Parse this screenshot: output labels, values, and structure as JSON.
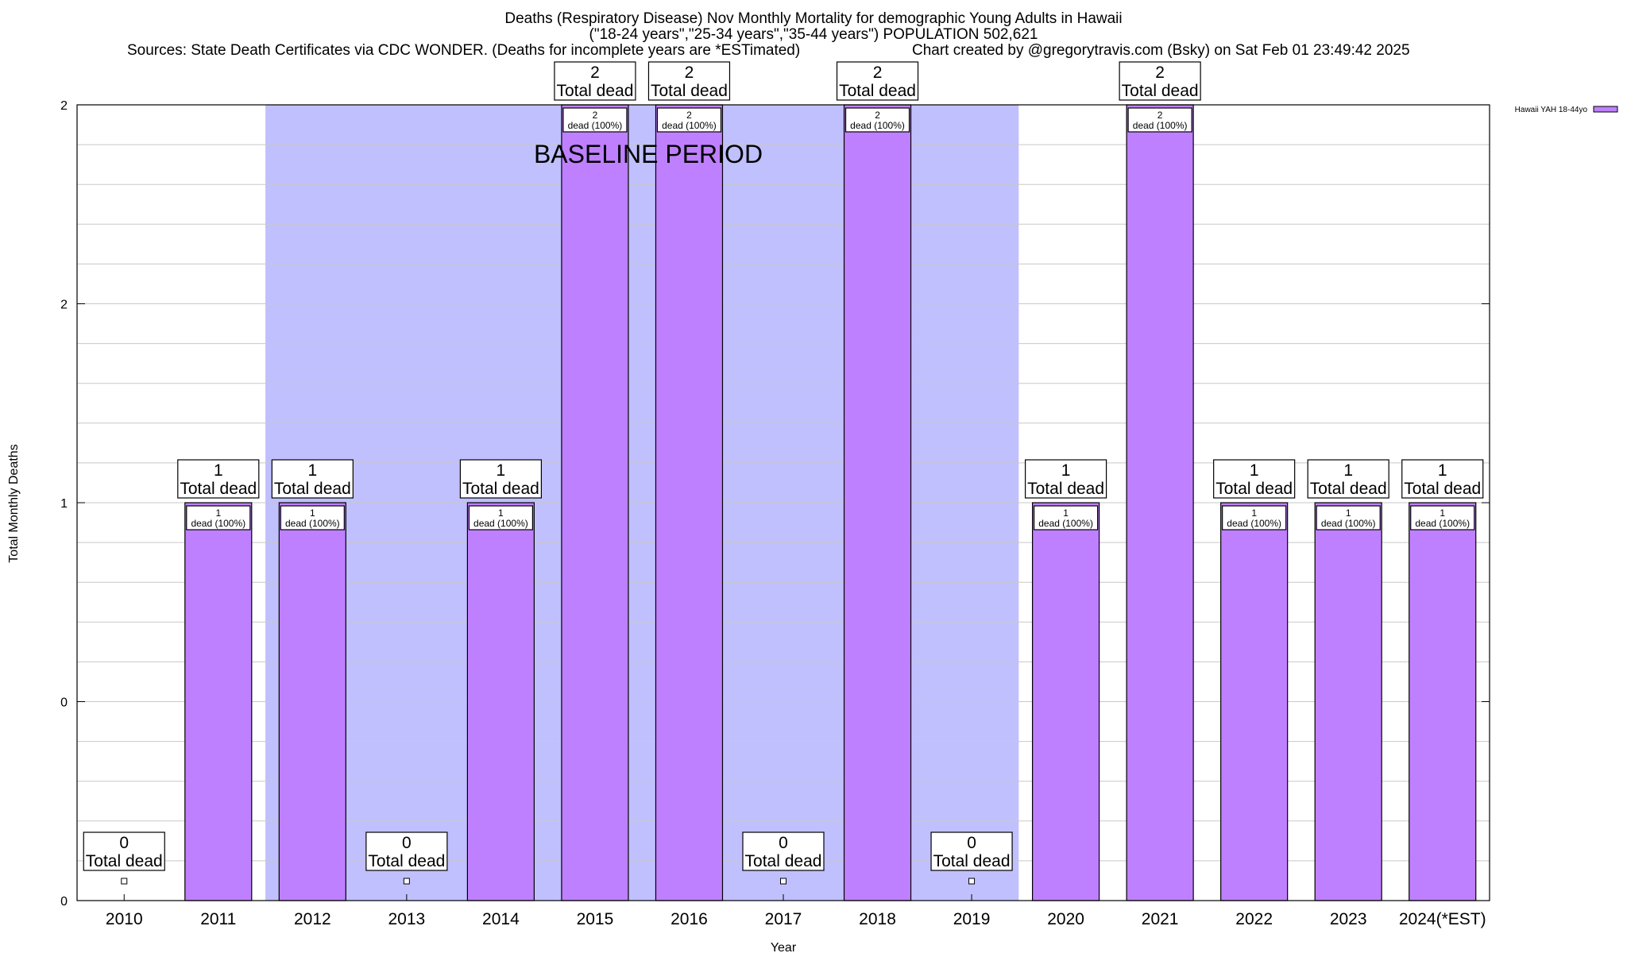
{
  "chart_data": {
    "type": "bar",
    "title": "Deaths (Respiratory Disease) Nov Monthly Mortality for demographic Young Adults in Hawaii",
    "subtitle": "(\"18-24 years\",\"25-34 years\",\"35-44 years\") POPULATION 502,621",
    "sources": "Sources: State Death Certificates via CDC WONDER. (Deaths for incomplete years are *ESTimated)",
    "credit": "Chart created by @gregorytravis.com (Bsky) on Sat Feb 01 23:49:42 2025",
    "xlabel": "Year",
    "ylabel": "Total Monthly Deaths",
    "categories": [
      "2010",
      "2011",
      "2012",
      "2013",
      "2014",
      "2015",
      "2016",
      "2017",
      "2018",
      "2019",
      "2020",
      "2021",
      "2022",
      "2023",
      "2024(*EST)"
    ],
    "series": [
      {
        "name": "Hawaii YAH 18-44yo",
        "values": [
          0,
          1,
          1,
          0,
          1,
          2,
          2,
          0,
          2,
          0,
          1,
          2,
          1,
          1,
          1
        ],
        "color": "#bf80ff"
      }
    ],
    "ylim": [
      0,
      2
    ],
    "y_tick_labels": [
      "0",
      "0",
      "1",
      "2",
      "2"
    ],
    "grid": true,
    "legend": "top-right",
    "total_label_suffix": "Total dead",
    "inner_label_suffix": "dead (100%)",
    "baseline": {
      "label": "BASELINE PERIOD",
      "from": "2012",
      "to": "2019",
      "color": "#c0c0ff"
    }
  }
}
